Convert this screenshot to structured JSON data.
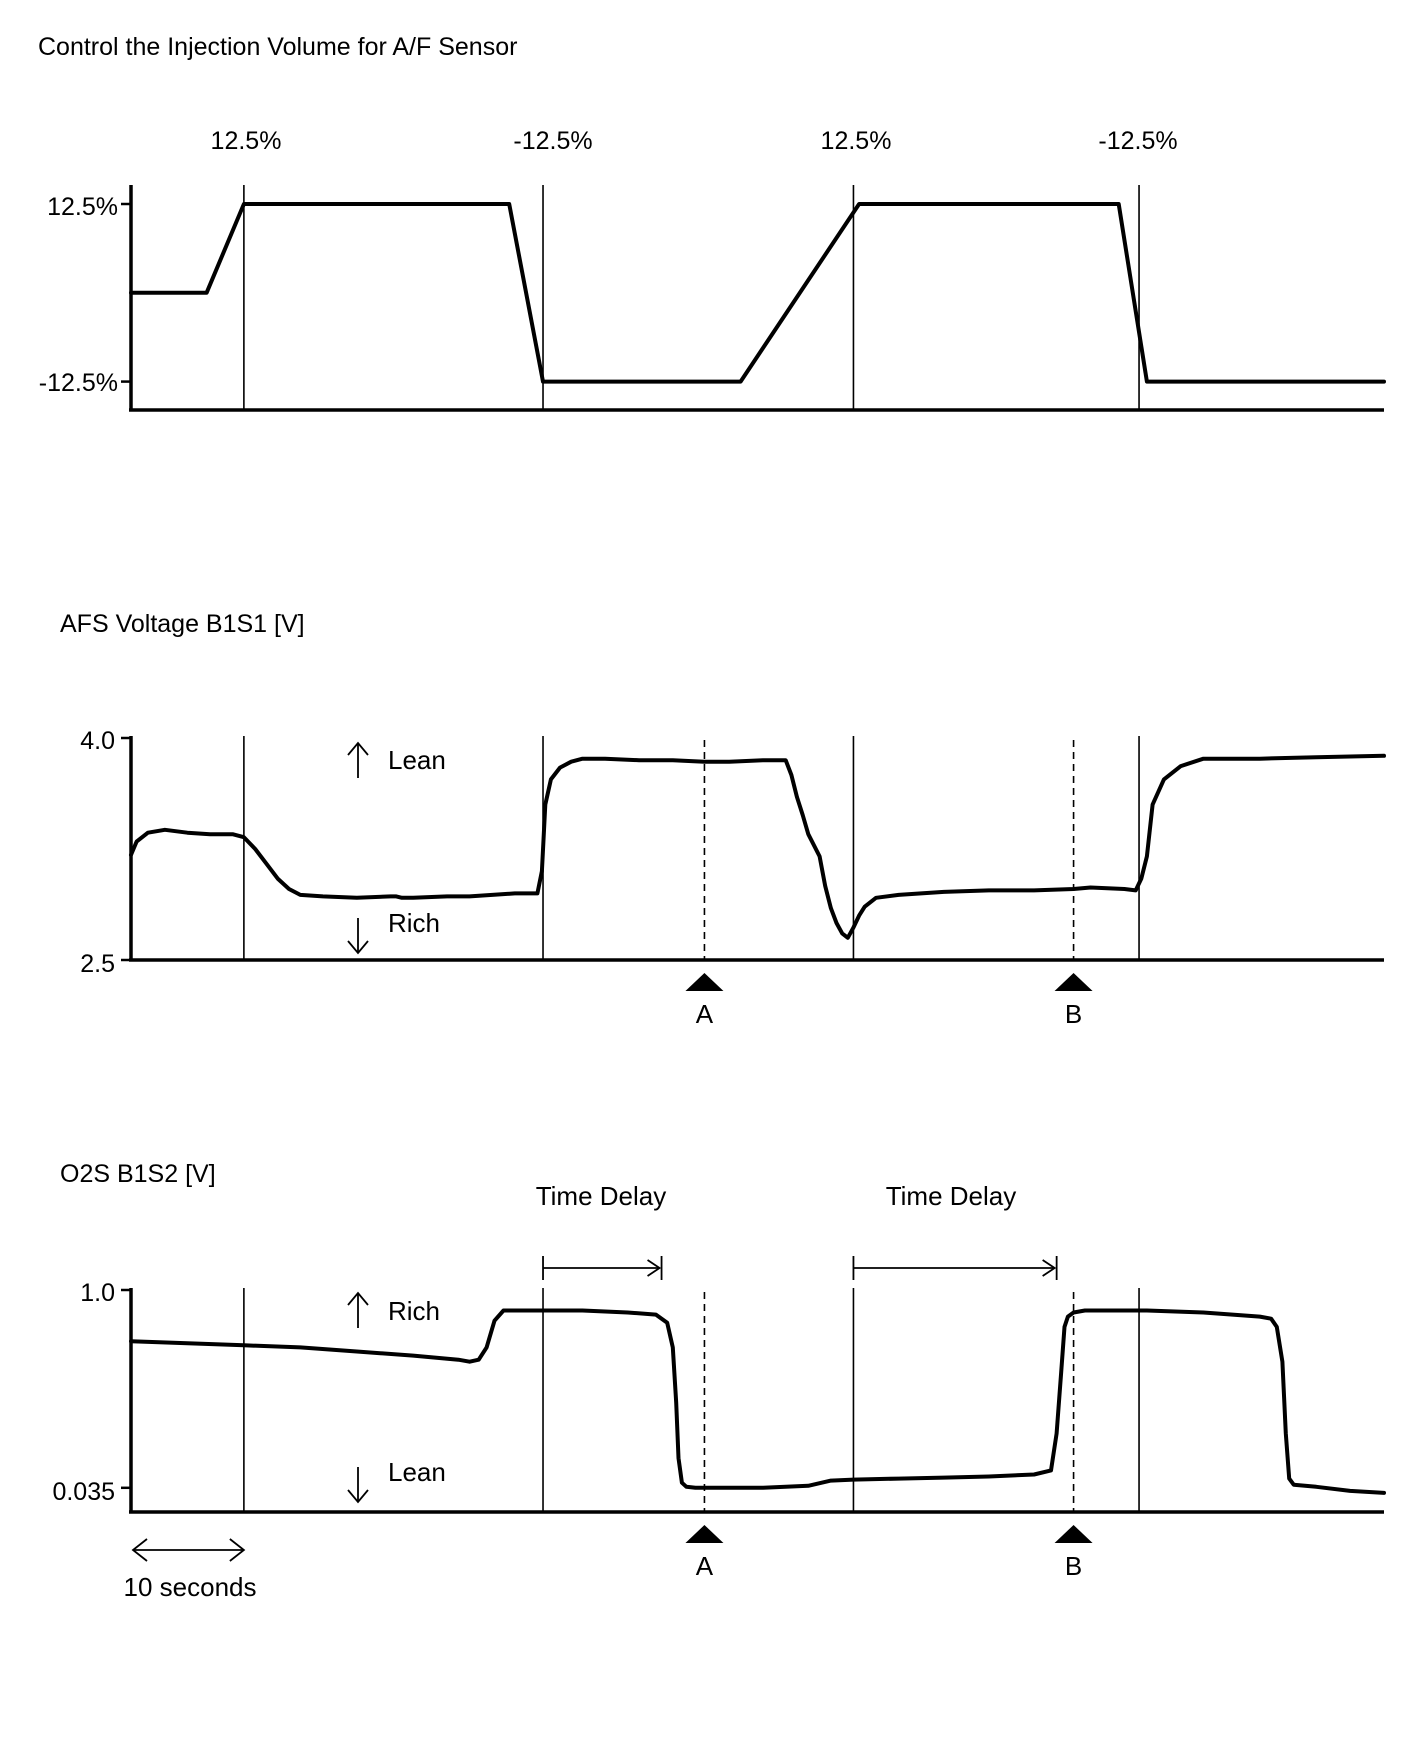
{
  "chart_data": [
    {
      "type": "line",
      "title": "Control the Injection Volume for A/F Sensor",
      "y_tick_labels": [
        "12.5%",
        "-12.5%"
      ],
      "top_labels": [
        "12.5%",
        "-12.5%",
        "12.5%",
        "-12.5%"
      ],
      "x_unit": "seconds",
      "xlim": [
        0,
        111
      ],
      "ylim": [
        -16.5,
        12.5
      ],
      "series": [
        {
          "name": "",
          "x": [
            0,
            6.7,
            10,
            33.5,
            36.5,
            54,
            64.5,
            87.5,
            90,
            111
          ],
          "y": [
            0,
            0,
            12.5,
            12.5,
            -12.5,
            -12.5,
            12.5,
            12.5,
            -12.5,
            -12.5
          ]
        }
      ]
    },
    {
      "type": "line",
      "title": "AFS Voltage B1S1 [V]",
      "y_tick_labels": [
        "4.0",
        "2.5"
      ],
      "annotations": [
        "Lean",
        "Rich"
      ],
      "markers": [
        {
          "label": "A",
          "x": 50.8
        },
        {
          "label": "B",
          "x": 83.5
        }
      ],
      "xlim": [
        0,
        111
      ],
      "ylim": [
        2.5,
        4.0
      ],
      "series": [
        {
          "name": "",
          "x": [
            0,
            0.5,
            1.5,
            3,
            5,
            7,
            9,
            10,
            11,
            12,
            13,
            14,
            15,
            17,
            20,
            23,
            23.5,
            24,
            25,
            28,
            30,
            32,
            34,
            36,
            36.4,
            36.7,
            37.2,
            38,
            39,
            40,
            42,
            45,
            48,
            50.8,
            53,
            56,
            58,
            58.5,
            59,
            59.5,
            60,
            61,
            61.5,
            62,
            62.5,
            63,
            63.5,
            64,
            64.5,
            65,
            66,
            68,
            72,
            76,
            80,
            83.5,
            85,
            88,
            89,
            89.5,
            90,
            90.5,
            91.5,
            93,
            95,
            100,
            105,
            111
          ],
          "y": [
            3.21,
            3.3,
            3.36,
            3.38,
            3.36,
            3.35,
            3.35,
            3.33,
            3.25,
            3.15,
            3.05,
            2.98,
            2.94,
            2.93,
            2.92,
            2.93,
            2.93,
            2.92,
            2.92,
            2.93,
            2.93,
            2.94,
            2.95,
            2.95,
            3.1,
            3.55,
            3.72,
            3.8,
            3.84,
            3.86,
            3.86,
            3.85,
            3.85,
            3.84,
            3.84,
            3.85,
            3.85,
            3.75,
            3.6,
            3.48,
            3.35,
            3.2,
            3.0,
            2.85,
            2.75,
            2.68,
            2.65,
            2.72,
            2.8,
            2.86,
            2.92,
            2.94,
            2.96,
            2.97,
            2.97,
            2.98,
            2.99,
            2.98,
            2.97,
            3.05,
            3.2,
            3.55,
            3.72,
            3.81,
            3.86,
            3.86,
            3.87,
            3.88
          ]
        }
      ]
    },
    {
      "type": "line",
      "title": "O2S B1S2 [V]",
      "y_tick_labels": [
        "1.0",
        "0.035"
      ],
      "annotations": [
        "Rich",
        "Lean"
      ],
      "time_delay_label": "Time Delay",
      "time_delays": [
        {
          "start": 36.5,
          "end": 47.0
        },
        {
          "start": 64,
          "end": 82.0
        }
      ],
      "markers": [
        {
          "label": "A",
          "x": 50.8
        },
        {
          "label": "B",
          "x": 83.5
        }
      ],
      "scale_label": "10 seconds",
      "scale_length": 10,
      "xlim": [
        0,
        111
      ],
      "ylim": [
        -0.083,
        1.0
      ],
      "series": [
        {
          "name": "",
          "x": [
            0,
            5,
            10,
            15,
            20,
            25,
            29,
            30,
            30.8,
            31.5,
            32.2,
            33,
            36.5,
            40,
            44,
            46.5,
            47.5,
            48,
            48.3,
            48.5,
            48.8,
            49.2,
            50,
            52,
            56,
            60,
            62,
            64,
            68,
            72,
            76,
            80,
            81.5,
            82,
            82.4,
            82.7,
            83,
            83.5,
            84.5,
            86,
            90,
            95,
            100,
            101,
            101.5,
            102,
            102.3,
            102.6,
            103,
            105,
            108,
            111
          ],
          "y": [
            0.75,
            0.74,
            0.73,
            0.72,
            0.7,
            0.68,
            0.66,
            0.65,
            0.66,
            0.72,
            0.85,
            0.9,
            0.9,
            0.9,
            0.89,
            0.88,
            0.84,
            0.72,
            0.45,
            0.18,
            0.06,
            0.04,
            0.035,
            0.035,
            0.035,
            0.045,
            0.07,
            0.075,
            0.08,
            0.085,
            0.09,
            0.1,
            0.12,
            0.3,
            0.6,
            0.82,
            0.87,
            0.89,
            0.9,
            0.9,
            0.9,
            0.89,
            0.87,
            0.86,
            0.82,
            0.65,
            0.3,
            0.08,
            0.05,
            0.04,
            0.02,
            0.01
          ]
        }
      ]
    }
  ]
}
